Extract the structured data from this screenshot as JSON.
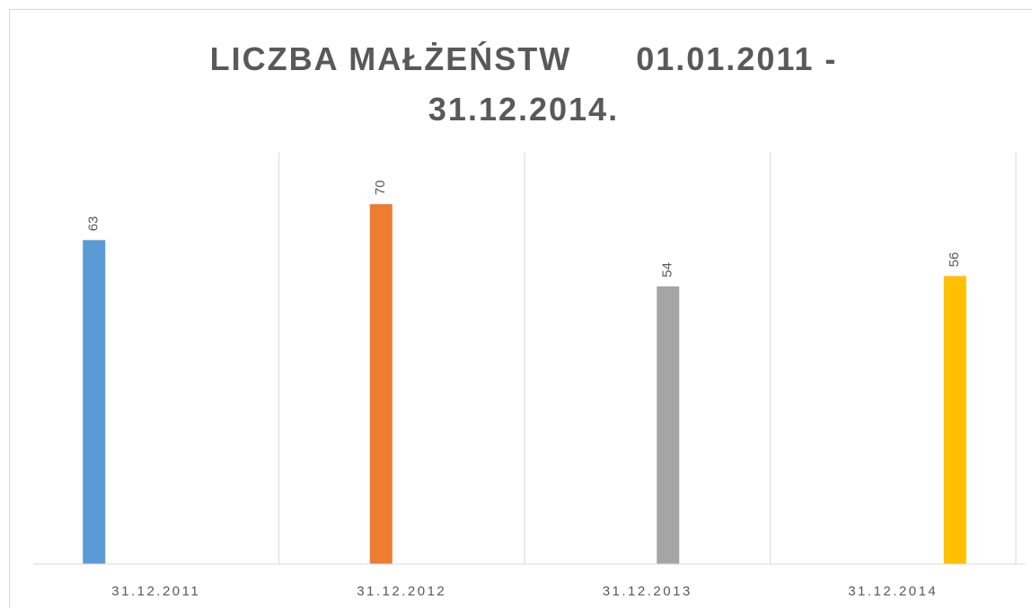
{
  "chart_data": {
    "type": "bar",
    "title": "LICZBA MAŁŻEŃSTW      01.01.2011 - 31.12.2014.",
    "categories": [
      "31.12.2011",
      "31.12.2012",
      "31.12.2013",
      "31.12.2014"
    ],
    "series": [
      {
        "color": "#5b9bd5",
        "values": [
          63,
          null,
          null,
          null
        ]
      },
      {
        "color": "#ed7d31",
        "values": [
          null,
          70,
          null,
          null
        ]
      },
      {
        "color": "#a5a5a5",
        "values": [
          null,
          null,
          54,
          null
        ]
      },
      {
        "color": "#ffc000",
        "values": [
          null,
          null,
          null,
          56
        ]
      }
    ],
    "ylim": [
      0,
      80
    ],
    "grid": true,
    "data_labels": true
  }
}
